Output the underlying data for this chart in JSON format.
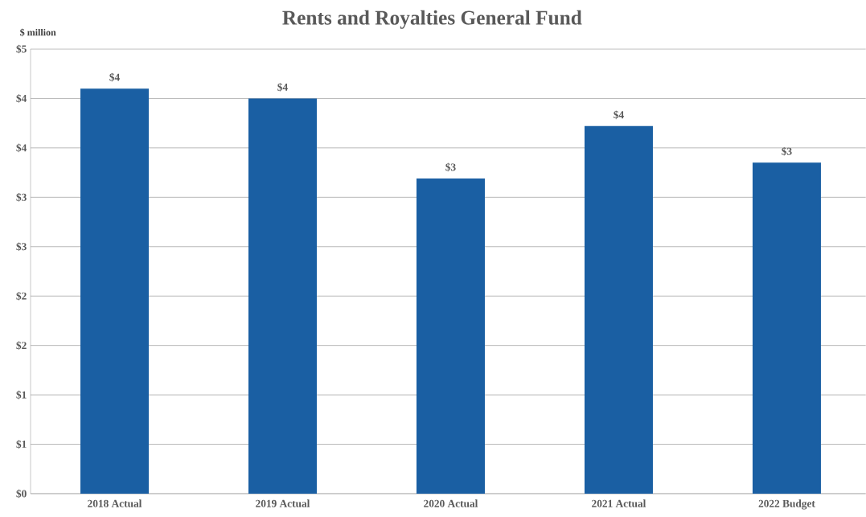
{
  "chart_data": {
    "type": "bar",
    "title": "Rents and Royalties General Fund",
    "ylabel": "$ million",
    "categories": [
      "2018 Actual",
      "2019 Actual",
      "2020 Actual",
      "2021 Actual",
      "2022 Budget"
    ],
    "values": [
      4.1,
      4.0,
      3.19,
      3.72,
      3.35
    ],
    "value_labels": [
      "$4",
      "$4",
      "$3",
      "$4",
      "$3"
    ],
    "color": "#1a5fa3",
    "ylim": [
      0,
      4.5
    ],
    "yticks": [
      {
        "value": 0,
        "label": "$0"
      },
      {
        "value": 0.5,
        "label": "$1"
      },
      {
        "value": 1,
        "label": "$1"
      },
      {
        "value": 1.5,
        "label": "$2"
      },
      {
        "value": 2,
        "label": "$2"
      },
      {
        "value": 2.5,
        "label": "$3"
      },
      {
        "value": 3,
        "label": "$3"
      },
      {
        "value": 3.5,
        "label": "$4"
      },
      {
        "value": 4,
        "label": "$4"
      },
      {
        "value": 4.5,
        "label": "$5"
      }
    ],
    "grid": "y"
  }
}
